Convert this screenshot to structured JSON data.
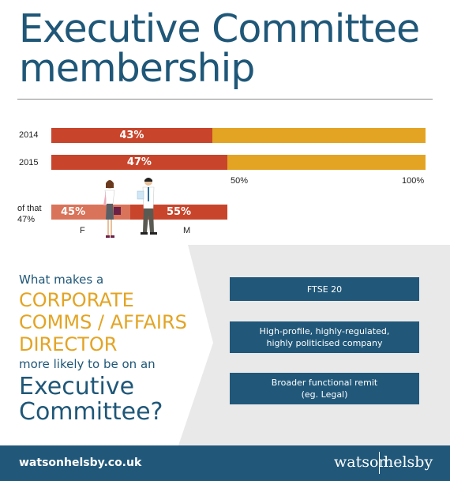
{
  "header": {
    "title": "Executive Committee membership"
  },
  "chart_data": {
    "type": "bar",
    "orientation": "horizontal-stacked",
    "categories": [
      "2014",
      "2015"
    ],
    "series": [
      {
        "values": [
          43,
          47
        ],
        "labels": [
          "43%",
          "47%"
        ],
        "color": "#c8452b"
      },
      {
        "values": [
          57,
          53
        ],
        "color": "#e3a424"
      }
    ],
    "xlim": [
      0,
      100
    ],
    "tick_labels": [
      "50%",
      "100%"
    ],
    "sub_breakdown": {
      "label": "of that 47%",
      "segments": [
        {
          "label": "F",
          "value": 45,
          "text": "45%",
          "color": "#d97359"
        },
        {
          "label": "M",
          "value": 55,
          "text": "55%",
          "color": "#c8452b"
        }
      ]
    },
    "colors": {
      "primary": "#c8452b",
      "remainder": "#e3a424",
      "female": "#d97359"
    }
  },
  "question": {
    "lead": "What makes a",
    "highlight_lines": [
      "CORPORATE",
      "COMMS / AFFAIRS",
      "DIRECTOR"
    ],
    "middle": "more likely to be on an",
    "big_lines": [
      "Executive",
      "Committee?"
    ]
  },
  "factors": [
    {
      "lines": [
        "FTSE 20"
      ]
    },
    {
      "lines": [
        "High-profile, highly-regulated,",
        "highly politicised company"
      ]
    },
    {
      "lines": [
        "Broader functional remit",
        "(eg. Legal)"
      ]
    }
  ],
  "footer": {
    "url": "watsonhelsby.co.uk",
    "brand_left": "watson",
    "brand_right": "helsby"
  },
  "theme": {
    "navy": "#21587a",
    "title_blue": "#1f5778",
    "orange": "#e3a424",
    "grey_panel": "#e9e9ea"
  }
}
